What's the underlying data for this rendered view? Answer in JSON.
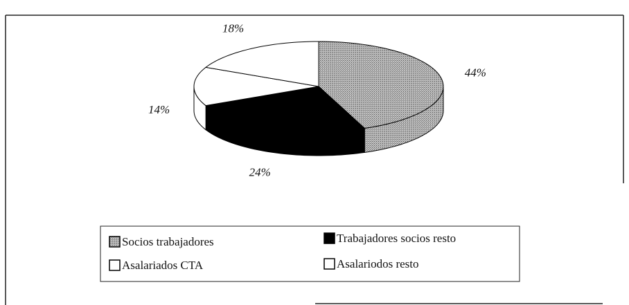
{
  "chart_data": {
    "type": "pie3d",
    "categories": [
      "Socios trabajadores",
      "Trabajadores socios resto",
      "Asalariados CTA",
      "Asalariodos resto"
    ],
    "values": [
      44,
      24,
      14,
      18
    ],
    "value_labels": [
      "44%",
      "24%",
      "14%",
      "18%"
    ],
    "colors": [
      "#a0a0a0",
      "#000000",
      "#ffffff",
      "#ffffff"
    ],
    "legend": "bottom"
  }
}
